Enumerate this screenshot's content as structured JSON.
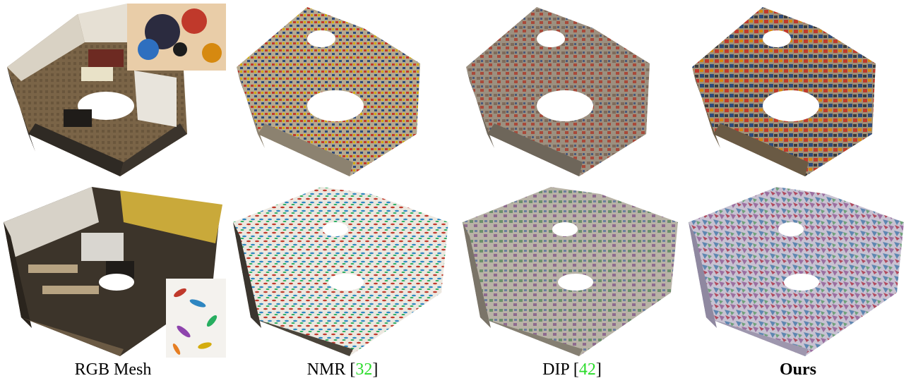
{
  "captions": [
    {
      "label": "RGB Mesh",
      "ref": ""
    },
    {
      "label": "NMR [",
      "ref": "32",
      "suffix": "]"
    },
    {
      "label": "DIP [",
      "ref": "42",
      "suffix": "]"
    },
    {
      "label": "Ours",
      "ref": ""
    }
  ],
  "rows": [
    {
      "scene": "living-room",
      "style": "abstract-painting"
    },
    {
      "scene": "office",
      "style": "watercolor-leaves"
    }
  ],
  "colors": {
    "citation": "#2bdc2b",
    "floor_brown": "#6b5a44",
    "wall_dark": "#3a352e",
    "wall_yellow": "#c9a93a"
  }
}
